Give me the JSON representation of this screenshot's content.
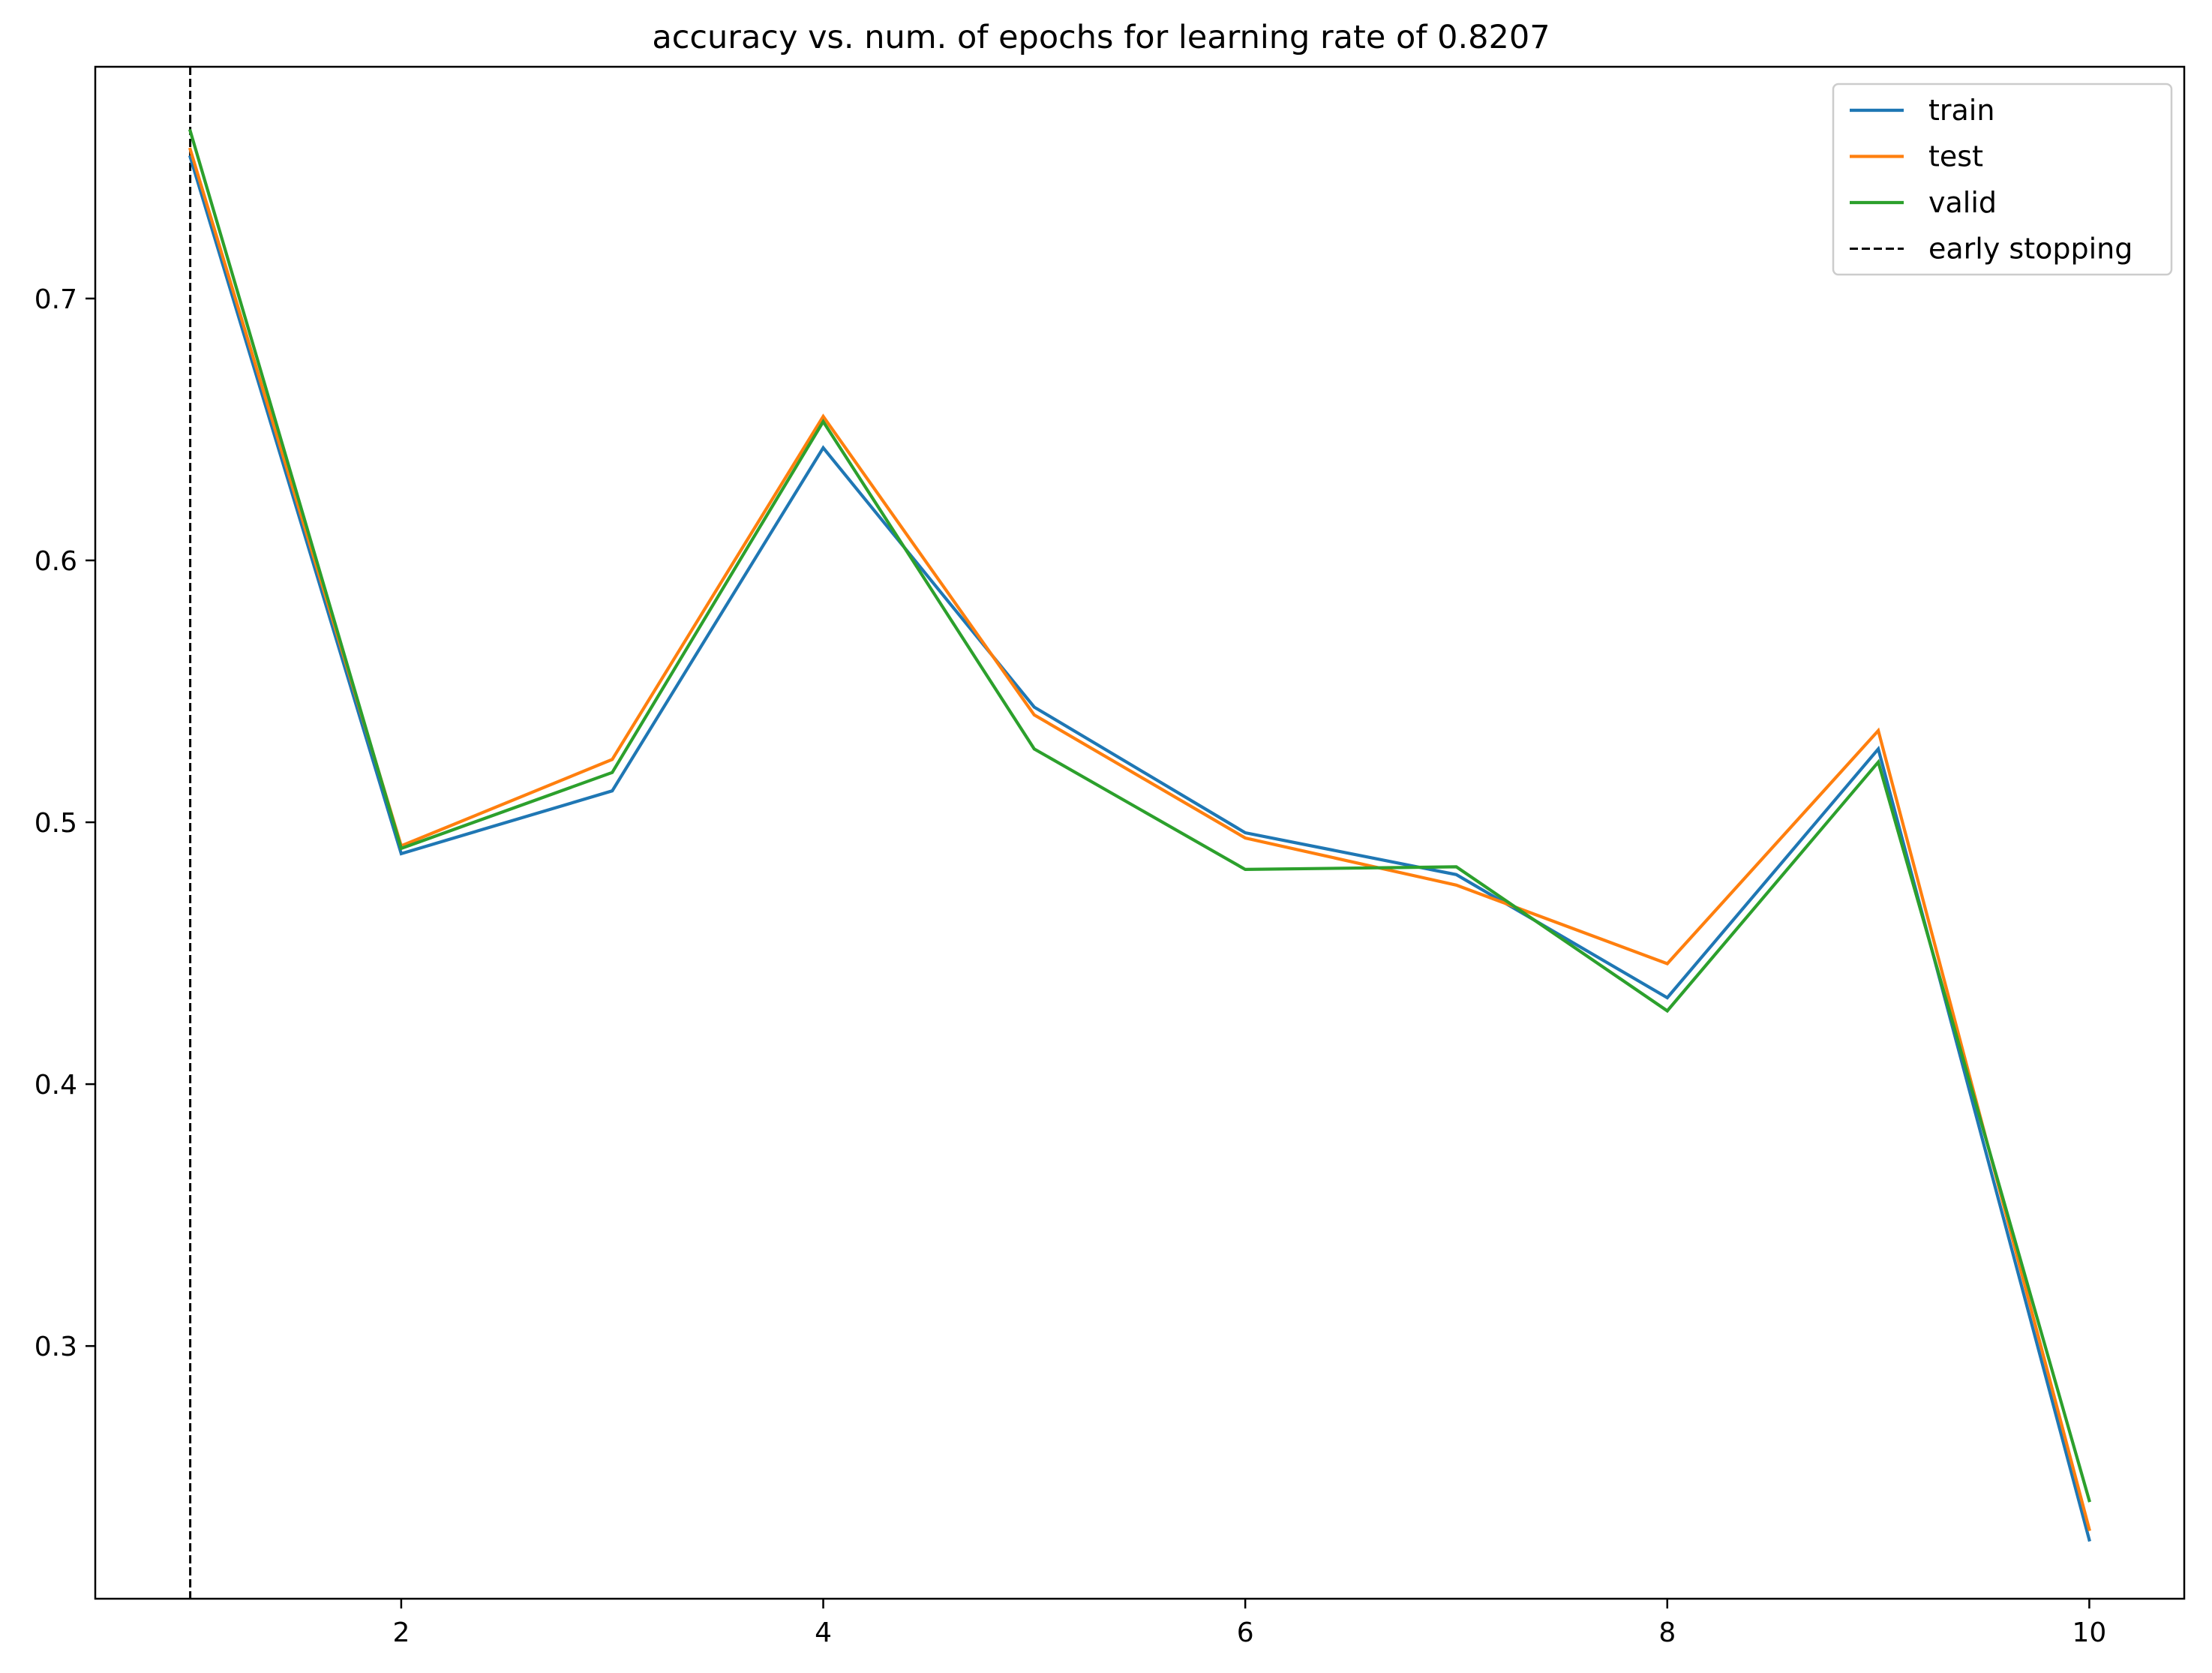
{
  "chart_data": {
    "type": "line",
    "title": "accuracy vs. num. of epochs for learning rate of 0.8207",
    "xlabel": "",
    "ylabel": "",
    "x": [
      1,
      2,
      3,
      4,
      5,
      6,
      7,
      8,
      9,
      10
    ],
    "xlim": [
      0.55,
      10.45
    ],
    "ylim": [
      0.2035,
      0.7885
    ],
    "xticks": [
      2,
      4,
      6,
      8,
      10
    ],
    "xtick_labels": [
      "2",
      "4",
      "6",
      "8",
      "10"
    ],
    "yticks": [
      0.3,
      0.4,
      0.5,
      0.6,
      0.7
    ],
    "ytick_labels": [
      "0.3",
      "0.4",
      "0.5",
      "0.6",
      "0.7"
    ],
    "grid": false,
    "legend_position": "top-right",
    "series": [
      {
        "name": "train",
        "color": "#1f77b4",
        "values": [
          0.754,
          0.488,
          0.512,
          0.643,
          0.544,
          0.496,
          0.48,
          0.433,
          0.528,
          0.226
        ]
      },
      {
        "name": "test",
        "color": "#ff7f0e",
        "values": [
          0.757,
          0.491,
          0.524,
          0.655,
          0.541,
          0.494,
          0.476,
          0.446,
          0.535,
          0.23
        ]
      },
      {
        "name": "valid",
        "color": "#2ca02c",
        "values": [
          0.764,
          0.49,
          0.519,
          0.653,
          0.528,
          0.482,
          0.483,
          0.428,
          0.523,
          0.241
        ]
      }
    ],
    "vline": {
      "name": "early stopping",
      "x": 1,
      "color": "#000000",
      "style": "dashed"
    }
  }
}
